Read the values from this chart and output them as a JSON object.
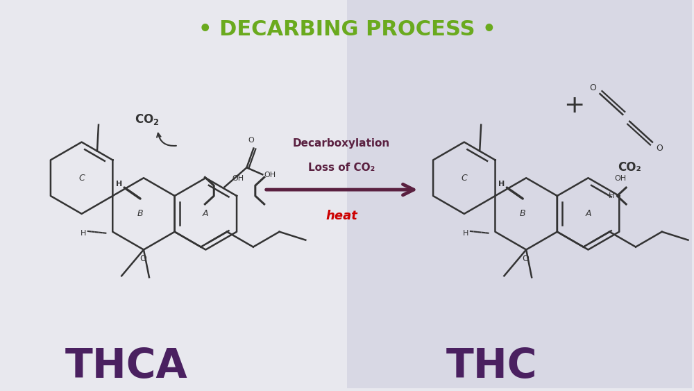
{
  "title": "• DECARBING PROCESS •",
  "title_color": "#6aaa1e",
  "title_fontsize": 22,
  "bg_left": "#e8e8ee",
  "bg_right": "#d8d8e4",
  "thca_label": "THCA",
  "thc_label": "THC",
  "label_color": "#4a2060",
  "label_fontsize": 42,
  "arrow_color": "#5a2040",
  "decarb_text1": "Decarboxylation",
  "decarb_text2": "Loss of CO₂",
  "heat_text": "heat",
  "heat_color": "#cc0000",
  "co2_label": "CO₂",
  "plus_label": "+",
  "molecule_color": "#333333",
  "line_width": 1.8
}
